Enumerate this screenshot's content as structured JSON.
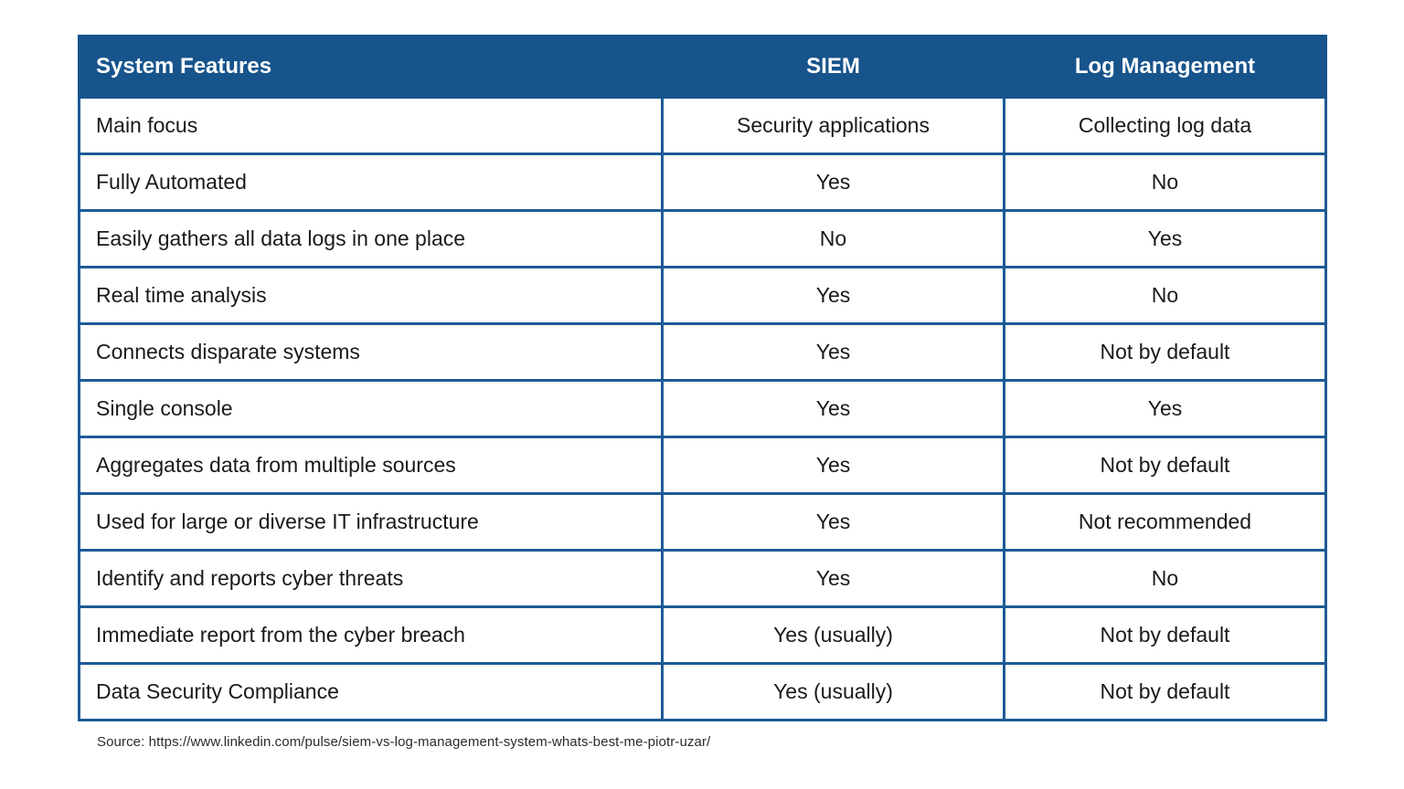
{
  "chart_data": {
    "type": "table",
    "columns": [
      "System Features",
      "SIEM",
      "Log Management"
    ],
    "rows": [
      [
        "Main focus",
        "Security applications",
        "Collecting log data"
      ],
      [
        "Fully Automated",
        "Yes",
        "No"
      ],
      [
        "Easily gathers all data logs in one place",
        "No",
        "Yes"
      ],
      [
        "Real time analysis",
        "Yes",
        "No"
      ],
      [
        "Connects disparate systems",
        "Yes",
        "Not by default"
      ],
      [
        "Single console",
        "Yes",
        "Yes"
      ],
      [
        "Aggregates data from multiple sources",
        "Yes",
        "Not by default"
      ],
      [
        "Used for large or diverse IT infrastructure",
        "Yes",
        "Not recommended"
      ],
      [
        "Identify and reports cyber threats",
        "Yes",
        "No"
      ],
      [
        "Immediate report from the cyber breach",
        "Yes (usually)",
        "Not by default"
      ],
      [
        "Data Security Compliance",
        "Yes (usually)",
        "Not by default"
      ]
    ],
    "legend_position": "none",
    "grid": true
  },
  "source": "Source: https://www.linkedin.com/pulse/siem-vs-log-management-system-whats-best-me-piotr-uzar/",
  "colors": {
    "header_bg": "#17548c",
    "border": "#1d5a96",
    "header_text": "#ffffff",
    "body_text": "#1a1a1a"
  }
}
